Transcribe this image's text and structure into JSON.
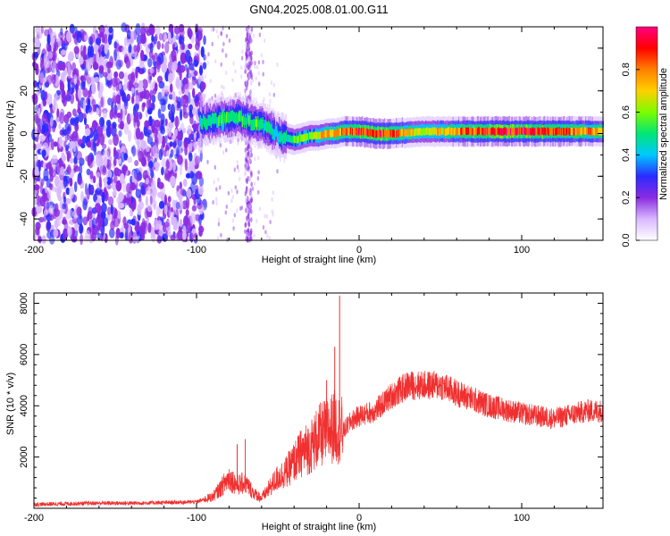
{
  "figure": {
    "title": "GN04.2025.008.01.00.G11"
  },
  "chart_data": [
    {
      "type": "heatmap",
      "xlabel": "Height of straight line (km)",
      "ylabel": "Frequency (Hz)",
      "xlim": [
        -200,
        150
      ],
      "ylim": [
        -50,
        50
      ],
      "x_ticks": [
        -200,
        -100,
        0,
        100
      ],
      "y_ticks": [
        -40,
        -20,
        0,
        20,
        40
      ],
      "colorbar": {
        "label": "Normalized spectral amplitude",
        "range": [
          0,
          1
        ],
        "ticks": [
          "0.0",
          "0.2",
          "0.4",
          "0.6",
          "0.8"
        ],
        "colors": [
          "#ffffff",
          "#d9b8ff",
          "#8a2be2",
          "#2b2bff",
          "#00c8ff",
          "#00e676",
          "#7cfc00",
          "#ffd000",
          "#ff7f00",
          "#ff0000",
          "#ff0080"
        ]
      },
      "ridge": {
        "x": [
          -98,
          -90,
          -85,
          -80,
          -75,
          -70,
          -65,
          -60,
          -55,
          -50,
          -45,
          -40,
          -35,
          -30,
          -25,
          -20,
          -15,
          -10,
          -5,
          0,
          10,
          20,
          40,
          60,
          80,
          100,
          120,
          140,
          150
        ],
        "freq": [
          5,
          6,
          7,
          7,
          8,
          6,
          5,
          4,
          2,
          -1,
          -2,
          -3,
          -2,
          -1,
          -1,
          0,
          0,
          1,
          1,
          1,
          0,
          0,
          1,
          1,
          1,
          1,
          1,
          1,
          1
        ],
        "amplitude": [
          0.45,
          0.5,
          0.55,
          0.5,
          0.55,
          0.5,
          0.55,
          0.5,
          0.45,
          0.45,
          0.5,
          0.55,
          0.6,
          0.6,
          0.7,
          0.75,
          0.8,
          0.8,
          0.85,
          0.9,
          0.9,
          0.85,
          0.65,
          0.8,
          0.9,
          0.9,
          0.85,
          0.8,
          0.75
        ]
      },
      "noise_region_x": [
        -200,
        -95
      ],
      "secondary_noise_x": [
        -70,
        -66
      ]
    },
    {
      "type": "line",
      "xlabel": "Height of straight line (km)",
      "ylabel": "SNR (10 * v/v)",
      "xlim": [
        -200,
        150
      ],
      "ylim": [
        0,
        8400
      ],
      "x_ticks": [
        -200,
        -100,
        0,
        100
      ],
      "y_ticks": [
        2000,
        4000,
        6000,
        8000
      ],
      "series": [
        {
          "color": "#f03030",
          "x": [
            -200,
            -180,
            -160,
            -140,
            -120,
            -100,
            -90,
            -85,
            -80,
            -75,
            -70,
            -65,
            -60,
            -55,
            -50,
            -45,
            -40,
            -35,
            -30,
            -25,
            -20,
            -15,
            -10,
            -5,
            0,
            10,
            20,
            30,
            40,
            50,
            60,
            80,
            100,
            120,
            140,
            150
          ],
          "y": [
            150,
            180,
            200,
            200,
            220,
            250,
            450,
            800,
            1200,
            900,
            1000,
            600,
            400,
            800,
            1200,
            1400,
            1800,
            2200,
            2400,
            2800,
            3000,
            3200,
            3000,
            3400,
            3600,
            3800,
            4400,
            4800,
            4800,
            4800,
            4500,
            4000,
            3700,
            3500,
            3800,
            3800
          ]
        }
      ],
      "spikes": [
        {
          "x": -12,
          "y": 8300
        },
        {
          "x": -15,
          "y": 6300
        },
        {
          "x": -20,
          "y": 5000
        },
        {
          "x": -70,
          "y": 2700
        },
        {
          "x": -75,
          "y": 2500
        }
      ]
    }
  ]
}
